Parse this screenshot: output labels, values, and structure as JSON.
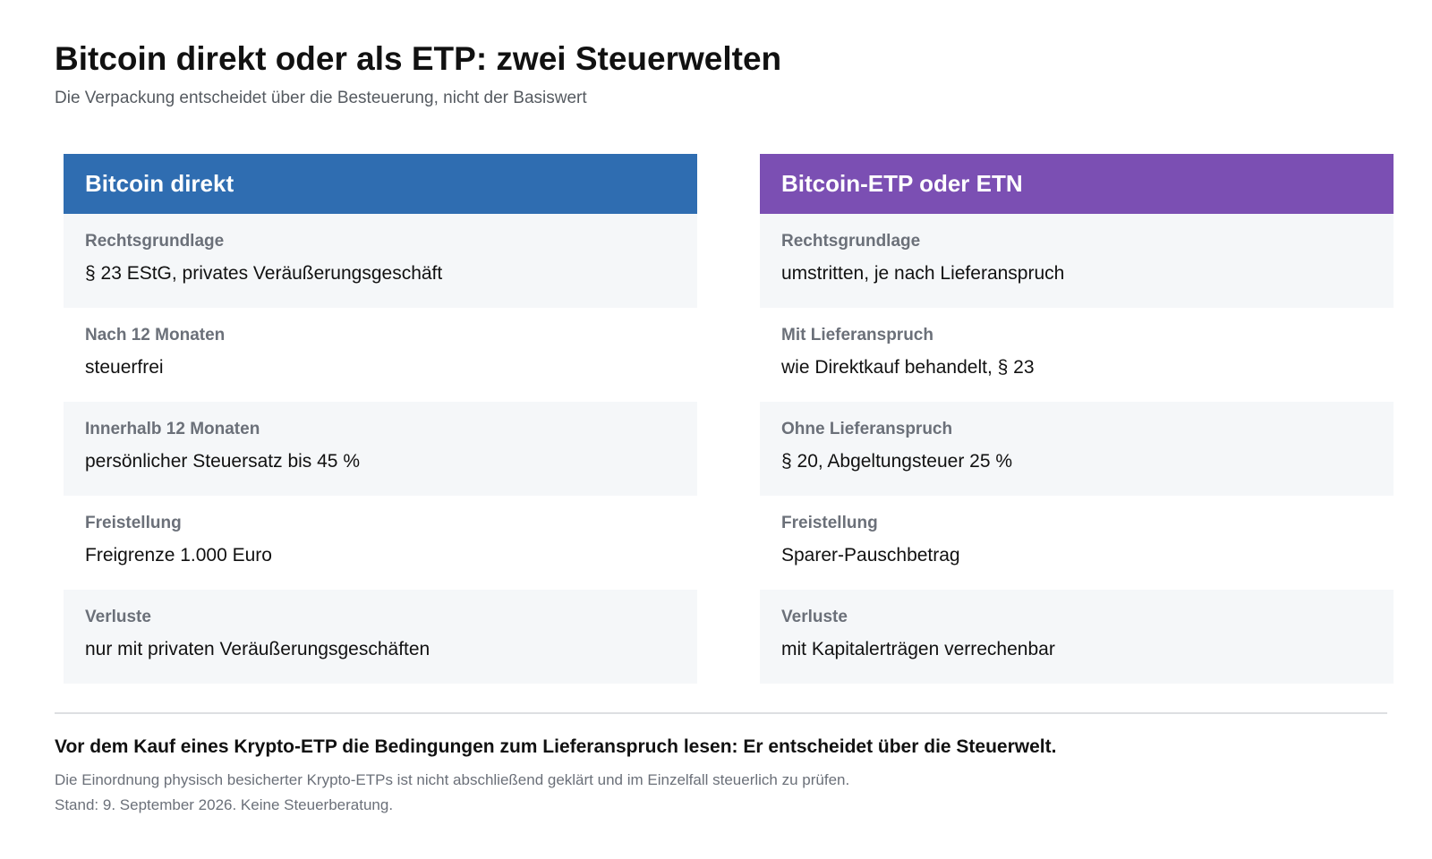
{
  "header": {
    "title": "Bitcoin direkt oder als ETP: zwei Steuerwelten",
    "subtitle": "Die Verpackung entscheidet über die Besteuerung, nicht der Basiswert"
  },
  "colors": {
    "direct_header": "#2f6db1",
    "etp_header": "#7b4fb3",
    "row_shade": "#f5f7f9"
  },
  "direct": {
    "heading": "Bitcoin direkt",
    "rows": [
      {
        "label": "Rechtsgrundlage",
        "value": "§ 23 EStG, privates Veräußerungsgeschäft"
      },
      {
        "label": "Nach 12 Monaten",
        "value": "steuerfrei"
      },
      {
        "label": "Innerhalb 12 Monaten",
        "value": "persönlicher Steuersatz bis 45 %"
      },
      {
        "label": "Freistellung",
        "value": "Freigrenze 1.000 Euro"
      },
      {
        "label": "Verluste",
        "value": "nur mit privaten Veräußerungsgeschäften"
      }
    ]
  },
  "etp": {
    "heading": "Bitcoin-ETP oder ETN",
    "rows": [
      {
        "label": "Rechtsgrundlage",
        "value": "umstritten, je nach Lieferanspruch"
      },
      {
        "label": "Mit Lieferanspruch",
        "value": "wie Direktkauf behandelt, § 23"
      },
      {
        "label": "Ohne Lieferanspruch",
        "value": "§ 20, Abgeltungsteuer 25 %"
      },
      {
        "label": "Freistellung",
        "value": "Sparer-Pauschbetrag"
      },
      {
        "label": "Verluste",
        "value": "mit Kapitalerträgen verrechenbar"
      }
    ]
  },
  "footer": {
    "headline": "Vor dem Kauf eines Krypto-ETP die Bedingungen zum Lieferanspruch lesen: Er entscheidet über die Steuerwelt.",
    "disclaimer": "Die Einordnung physisch besicherter Krypto-ETPs ist nicht abschließend geklärt und im Einzelfall steuerlich zu prüfen.",
    "stand": "Stand: 9. September 2026. Keine Steuerberatung."
  }
}
